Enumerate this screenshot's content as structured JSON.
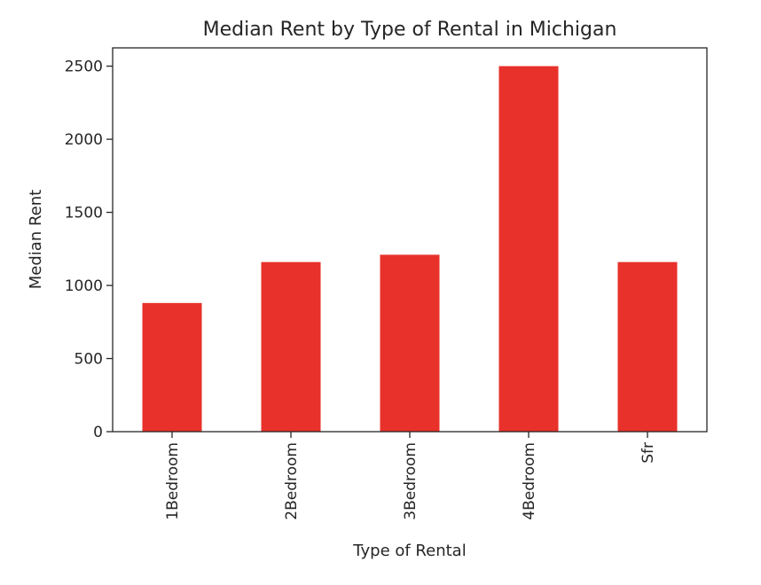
{
  "chart_data": {
    "type": "bar",
    "title": "Median Rent by Type of Rental in Michigan",
    "xlabel": "Type of Rental",
    "ylabel": "Median Rent",
    "categories": [
      "1Bedroom",
      "2Bedroom",
      "3Bedroom",
      "4Bedroom",
      "Sfr"
    ],
    "values": [
      880,
      1160,
      1210,
      2500,
      1160
    ],
    "yticks": [
      0,
      500,
      1000,
      1500,
      2000,
      2500
    ],
    "ylim": [
      0,
      2625
    ],
    "bar_color": "#e8312a",
    "grid": false,
    "legend": "none",
    "xtick_rotation": "vertical"
  }
}
